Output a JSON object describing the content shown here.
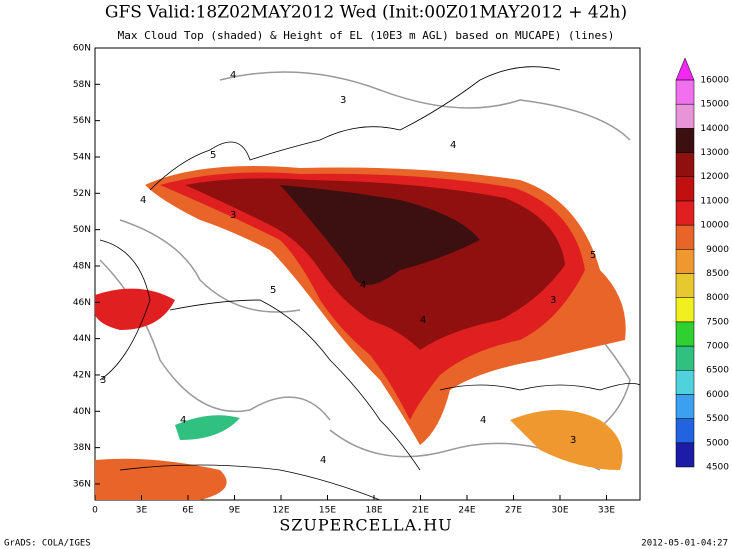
{
  "header": {
    "title": "GFS Valid:18Z02MAY2012 Wed (Init:00Z01MAY2012 + 42h)",
    "subtitle": "Max Cloud Top (shaded) & Height of EL (10E3 m AGL) based on MUCAPE) (lines)"
  },
  "map": {
    "lat_labels": [
      "60N",
      "58N",
      "56N",
      "54N",
      "52N",
      "50N",
      "48N",
      "46N",
      "44N",
      "42N",
      "40N",
      "38N",
      "36N"
    ],
    "lon_labels": [
      "0",
      "3E",
      "6E",
      "9E",
      "12E",
      "15E",
      "18E",
      "21E",
      "24E",
      "27E",
      "30E",
      "33E"
    ],
    "contour_labels": [
      4,
      3,
      5,
      4,
      4,
      3,
      5,
      4,
      3,
      4,
      4,
      3,
      5,
      4,
      3,
      4
    ]
  },
  "colorbar": {
    "levels": [
      4500,
      5000,
      5500,
      6000,
      6500,
      7000,
      7500,
      8000,
      8500,
      9000,
      10000,
      11000,
      12000,
      13000,
      14000,
      15000,
      16000
    ],
    "colors": [
      "#1c1ca8",
      "#2264e0",
      "#3ca0f0",
      "#50d2dc",
      "#30c080",
      "#30d030",
      "#f0f020",
      "#e8c830",
      "#f09830",
      "#e86428",
      "#e02020",
      "#c01010",
      "#901010",
      "#3c1010",
      "#e894d8",
      "#f070f0"
    ],
    "extend_color": "#f028f0"
  },
  "footer": {
    "left": "GrADS: COLA/IGES",
    "center": "SZUPERCELLA.HU",
    "right": "2012-05-01-04:27"
  }
}
